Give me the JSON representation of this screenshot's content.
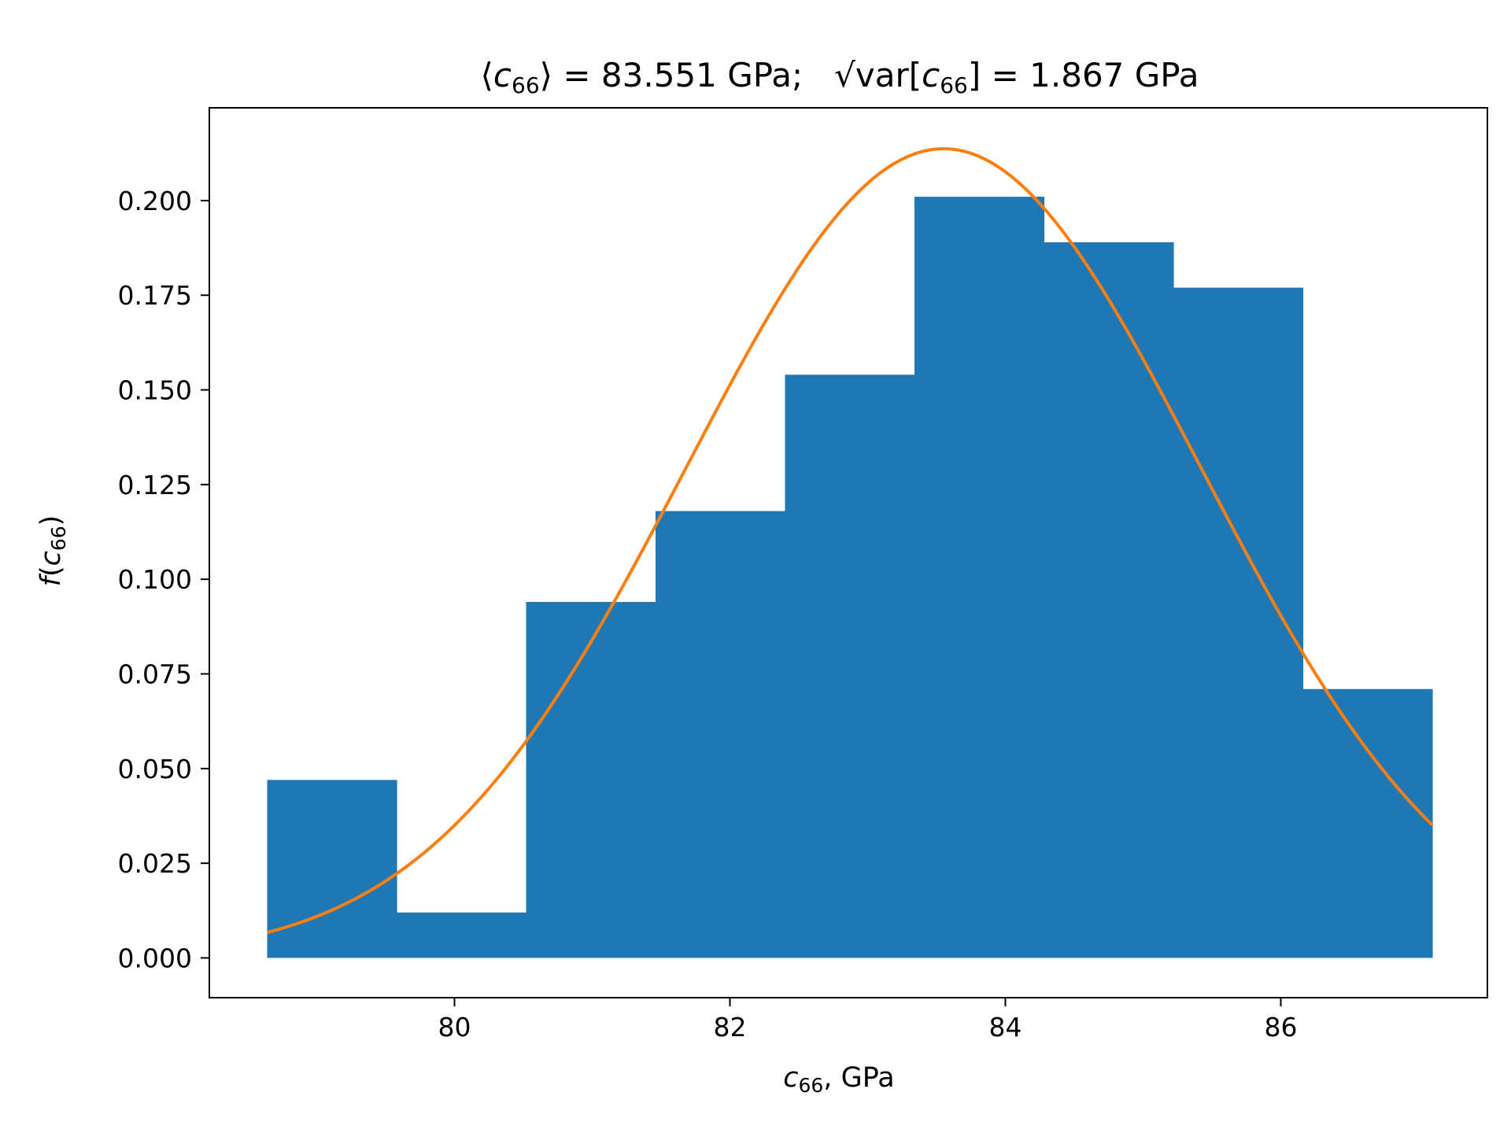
{
  "chart_data": {
    "type": "bar",
    "title": {
      "mean_open": "⟨",
      "mean_symbol": "c",
      "mean_sub": "66",
      "mean_close": "⟩ = 83.551 GPa;",
      "sqrt_sign": "√",
      "var_open": "var[",
      "var_symbol": "c",
      "var_sub": "66",
      "var_close": "] = 1.867 GPa"
    },
    "xlabel": {
      "symbol": "c",
      "sub": "66",
      "rest": ", GPa"
    },
    "ylabel": {
      "func": "f",
      "open": "(",
      "symbol": "c",
      "sub": "66",
      "close": ")"
    },
    "xlim": [
      78.22,
      87.5
    ],
    "ylim": [
      -0.0105,
      0.2245
    ],
    "xticks": [
      80,
      82,
      84,
      86
    ],
    "yticks": [
      0.0,
      0.025,
      0.05,
      0.075,
      0.1,
      0.125,
      0.15,
      0.175,
      0.2
    ],
    "bin_edges": [
      78.64,
      79.58,
      80.52,
      81.46,
      82.4,
      83.34,
      84.28,
      85.22,
      86.16,
      87.1
    ],
    "values": [
      0.047,
      0.012,
      0.094,
      0.118,
      0.154,
      0.201,
      0.189,
      0.177,
      0.071
    ],
    "bar_color": "#1f77b4",
    "series": [
      {
        "type": "line",
        "mean": 83.551,
        "std": 1.867,
        "x_range": [
          78.64,
          87.1
        ],
        "color": "#ff7f0e"
      }
    ],
    "grid": false
  }
}
